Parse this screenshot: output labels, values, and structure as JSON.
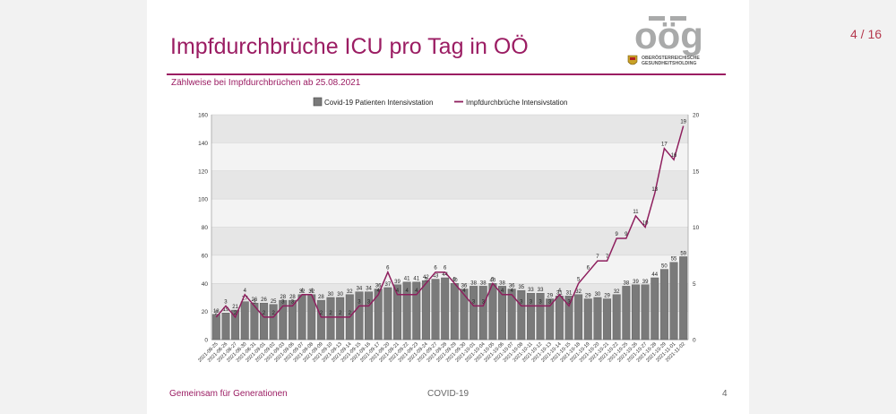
{
  "page_indicator": "4 / 16",
  "slide": {
    "title": "Impfdurchbrüche ICU pro Tag in OÖ",
    "subtitle": "Zählweise bei Impfdurchbrüchen ab 25.08.2021",
    "logo": {
      "word": "oög",
      "line1": "OBERÖSTERREICHISCHE",
      "line2": "GESUNDHEITSHOLDING"
    },
    "footer_left": "Gemeinsam für Generationen",
    "footer_center": "COVID-19",
    "footer_right": "4"
  },
  "colors": {
    "brand": "#9b1d63",
    "bar": "#7a7a7a",
    "line": "#8e1f5e",
    "bg": "#f2f2f2"
  },
  "chart_data": {
    "type": "bar",
    "title": "",
    "legend_position": "top",
    "grid": true,
    "categories": [
      "2021-08-25",
      "2021-08-26",
      "2021-08-27",
      "2021-08-30",
      "2021-08-31",
      "2021-09-01",
      "2021-09-02",
      "2021-09-03",
      "2021-09-06",
      "2021-09-07",
      "2021-09-08",
      "2021-09-09",
      "2021-09-10",
      "2021-09-13",
      "2021-09-14",
      "2021-09-15",
      "2021-09-16",
      "2021-09-17",
      "2021-09-20",
      "2021-09-21",
      "2021-09-22",
      "2021-09-23",
      "2021-09-24",
      "2021-09-27",
      "2021-09-28",
      "2021-09-29",
      "2021-09-30",
      "2021-10-01",
      "2021-10-04",
      "2021-10-05",
      "2021-10-06",
      "2021-10-07",
      "2021-10-08",
      "2021-10-11",
      "2021-10-12",
      "2021-10-13",
      "2021-10-14",
      "2021-10-15",
      "2021-10-18",
      "2021-10-19",
      "2021-10-20",
      "2021-10-21",
      "2021-10-22",
      "2021-10-25",
      "2021-10-26",
      "2021-10-27",
      "2021-10-28",
      "2021-10-29",
      "2021-11-01",
      "2021-11-02"
    ],
    "y_left": {
      "min": 0,
      "max": 160,
      "ticks": [
        0,
        20,
        40,
        60,
        80,
        100,
        120,
        140,
        160
      ]
    },
    "y_right": {
      "min": 0,
      "max": 20,
      "ticks": [
        0,
        5,
        10,
        15,
        20
      ]
    },
    "series": [
      {
        "name": "Covid-19 Patienten Intensivstation",
        "kind": "bar",
        "axis": "left",
        "values": [
          18,
          19,
          21,
          27,
          26,
          26,
          25,
          28,
          28,
          32,
          32,
          28,
          30,
          30,
          32,
          34,
          34,
          36,
          37,
          39,
          41,
          41,
          42,
          43,
          44,
          40,
          36,
          38,
          38,
          40,
          38,
          36,
          35,
          33,
          33,
          29,
          31,
          31,
          32,
          29,
          30,
          29,
          32,
          38,
          39,
          39,
          44,
          50,
          55,
          59
        ]
      },
      {
        "name": "Impfdurchbrüche Intensivstation",
        "kind": "line",
        "axis": "right",
        "values": [
          2,
          3,
          2,
          4,
          3,
          2,
          2,
          3,
          3,
          4,
          4,
          2,
          2,
          2,
          2,
          3,
          3,
          4,
          6,
          4,
          4,
          4,
          5,
          6,
          6,
          5,
          4,
          3,
          3,
          5,
          4,
          4,
          3,
          3,
          3,
          3,
          4,
          3,
          5,
          6,
          7,
          7,
          9,
          9,
          11,
          10,
          13,
          17,
          16,
          19
        ]
      }
    ]
  }
}
